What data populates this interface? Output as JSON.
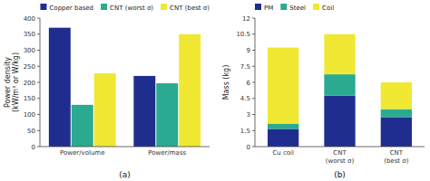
{
  "chart_data": [
    {
      "type": "bar",
      "subtitle": "(a)",
      "y_label": "Power density\n(kW/m³ or W/kg)",
      "categories": [
        "Power/volume",
        "Power/mass"
      ],
      "series": [
        {
          "name": "Copper based",
          "color": "#1f2e8e",
          "values": [
            370,
            220
          ]
        },
        {
          "name": "CNT (worst σ)",
          "color": "#2aaa90",
          "values": [
            130,
            197
          ]
        },
        {
          "name": "CNT (best σ)",
          "color": "#f0e832",
          "values": [
            228,
            350
          ]
        }
      ],
      "ylim": [
        0,
        400
      ],
      "yticks": [
        0,
        50,
        100,
        150,
        200,
        250,
        300,
        350,
        400
      ],
      "legend": "upper right"
    },
    {
      "type": "bar",
      "stacked": true,
      "subtitle": "(b)",
      "y_label": "Mass (kg)",
      "categories": [
        "Cu coil",
        "CNT\n(worst σ)",
        "CNT\n(best σ)"
      ],
      "series": [
        {
          "name": "PM",
          "color": "#1f2e8e",
          "values": [
            1.65,
            4.75,
            2.75
          ]
        },
        {
          "name": "Steel",
          "color": "#2aaa90",
          "values": [
            0.5,
            2.0,
            0.75
          ]
        },
        {
          "name": "Coil",
          "color": "#f0e832",
          "values": [
            7.1,
            3.75,
            2.5
          ]
        }
      ],
      "ylim": [
        0,
        12
      ],
      "yticks": [
        0,
        1.5,
        3,
        4.5,
        6,
        7.5,
        9,
        10.5,
        12
      ],
      "legend": "upper left"
    }
  ]
}
